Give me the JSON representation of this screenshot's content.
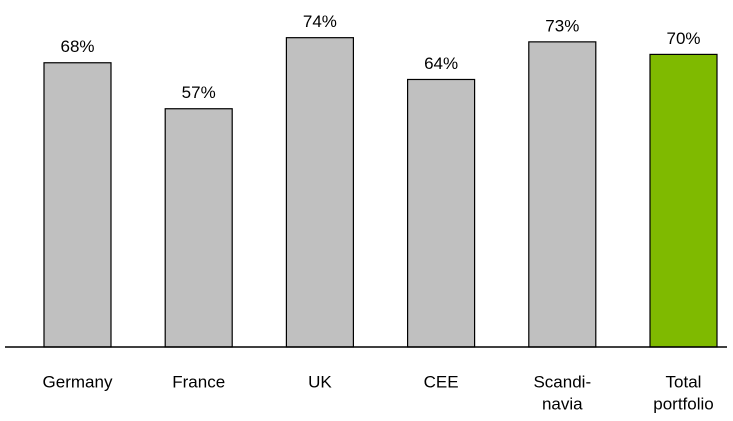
{
  "chart_data": {
    "type": "bar",
    "categories": [
      [
        "Germany"
      ],
      [
        "France"
      ],
      [
        "UK"
      ],
      [
        "CEE"
      ],
      [
        "Scandi-",
        "navia"
      ],
      [
        "Total",
        "portfolio"
      ]
    ],
    "values": [
      68,
      57,
      74,
      64,
      73,
      70
    ],
    "value_labels": [
      "68%",
      "57%",
      "74%",
      "64%",
      "73%",
      "70%"
    ],
    "colors": [
      "#c0c0c0",
      "#c0c0c0",
      "#c0c0c0",
      "#c0c0c0",
      "#c0c0c0",
      "#7fba00"
    ]
  }
}
